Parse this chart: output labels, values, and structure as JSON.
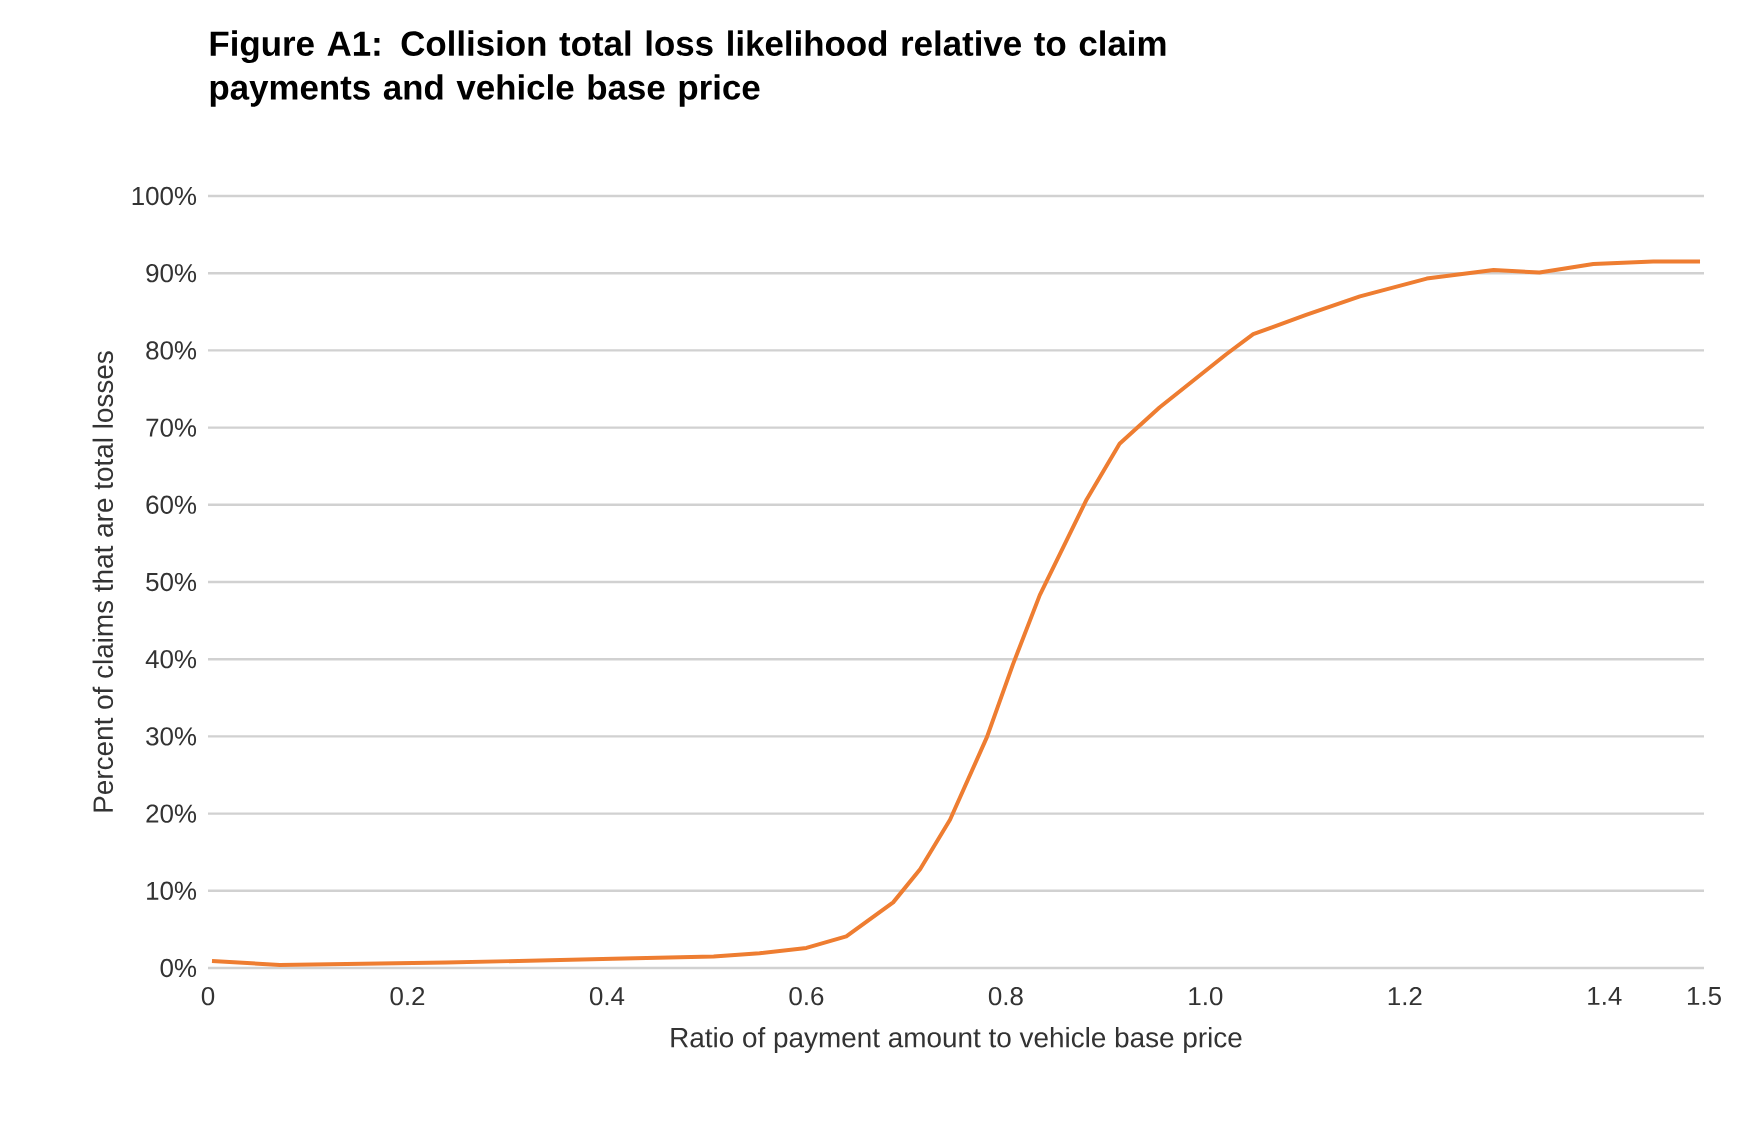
{
  "chart_data": {
    "type": "line",
    "title": "Figure A1: Collision total loss likelihood relative to claim payments and vehicle base price",
    "xlabel": "Ratio of payment amount to vehicle base price",
    "ylabel": "Percent of claims that are total losses",
    "xlim": [
      0,
      1.5
    ],
    "ylim": [
      0,
      100
    ],
    "xticks": [
      0,
      0.2,
      0.4,
      0.6,
      0.8,
      {
        "value": 1,
        "label": "1.0"
      },
      1.2,
      1.4,
      1.5
    ],
    "yticks": [
      {
        "value": 0,
        "label": "0%"
      },
      {
        "value": 10,
        "label": "10%"
      },
      {
        "value": 20,
        "label": "20%"
      },
      {
        "value": 30,
        "label": "30%"
      },
      {
        "value": 40,
        "label": "40%"
      },
      {
        "value": 50,
        "label": "50%"
      },
      {
        "value": 60,
        "label": "60%"
      },
      {
        "value": 70,
        "label": "70%"
      },
      {
        "value": 80,
        "label": "80%"
      },
      {
        "value": 90,
        "label": "90%"
      },
      {
        "value": 100,
        "label": "100%"
      }
    ],
    "grid": "y",
    "marker": "none",
    "line_style": "solid",
    "series": [
      {
        "color": "#ee7d31",
        "x": [
          0.004,
          0.072,
          0.239,
          0.406,
          0.507,
          0.553,
          0.6,
          0.64,
          0.687,
          0.714,
          0.744,
          0.781,
          0.807,
          0.834,
          0.881,
          0.914,
          0.954,
          1.021,
          1.048,
          1.101,
          1.155,
          1.222,
          1.289,
          1.335,
          1.389,
          1.449,
          1.496
        ],
        "values": [
          0.9,
          0.4,
          0.7,
          1.2,
          1.5,
          1.9,
          2.6,
          4.1,
          8.5,
          12.8,
          19.2,
          29.9,
          39.3,
          48.3,
          60.7,
          67.9,
          72.6,
          79.5,
          82.1,
          84.6,
          87.0,
          89.3,
          90.4,
          90.1,
          91.2,
          91.5,
          91.5
        ]
      }
    ]
  }
}
